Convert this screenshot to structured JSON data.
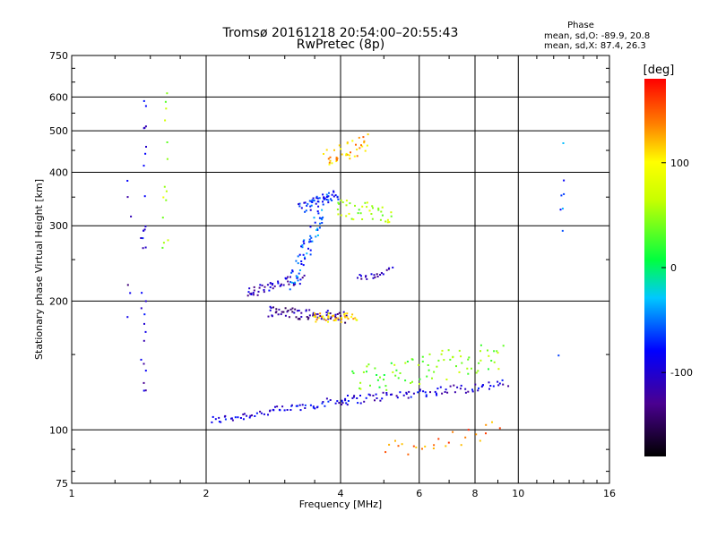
{
  "chart_data": {
    "type": "scatter",
    "title": "Tromsø 20161218 20:54:00–20:55:43",
    "subtitle": "RwPretec (8p)",
    "phase_info": {
      "title": "Phase",
      "line_o": "mean, sd,O: -89.9, 20.8",
      "line_x": "mean, sd,X:  87.4, 26.3"
    },
    "xlabel": "Frequency [MHz]",
    "ylabel": "Stationary phase Virtual Height [km]",
    "x_scale": "log2",
    "y_scale": "log",
    "xlim": [
      1,
      16
    ],
    "ylim": [
      75,
      750
    ],
    "x_ticks": [
      1,
      2,
      4,
      6,
      8,
      10,
      16
    ],
    "x_tick_labels": [
      "1",
      "2",
      "4",
      "6",
      "8",
      "10",
      "16"
    ],
    "y_ticks": [
      75,
      100,
      200,
      300,
      400,
      500,
      600,
      750
    ],
    "y_tick_labels": [
      "75",
      "100",
      "200",
      "300",
      "400",
      "500",
      "600",
      "750"
    ],
    "grid": true,
    "colorbar": {
      "label": "[deg]",
      "range": [
        -180,
        180
      ],
      "ticks": [
        100,
        0,
        -100
      ],
      "tick_labels": [
        "100",
        "0",
        "-100"
      ]
    },
    "traces": [
      {
        "x_start": 2.05,
        "x_end": 4.2,
        "y_start": 105,
        "y_end": 118,
        "n": 70,
        "spread": 0.022,
        "phase": -95
      },
      {
        "x_start": 4.0,
        "x_end": 9.4,
        "y_start": 117,
        "y_end": 128,
        "n": 80,
        "spread": 0.025,
        "phase": -100
      },
      {
        "x_start": 4.3,
        "x_end": 9.2,
        "y_start": 130,
        "y_end": 150,
        "n": 80,
        "spread": 0.08,
        "phase": 40
      },
      {
        "x_start": 2.75,
        "x_end": 4.1,
        "y_start": 190,
        "y_end": 183,
        "n": 70,
        "spread": 0.03,
        "phase": -120
      },
      {
        "x_start": 3.45,
        "x_end": 4.35,
        "y_start": 183,
        "y_end": 183,
        "n": 40,
        "spread": 0.025,
        "phase": 110
      },
      {
        "x_start": 2.45,
        "x_end": 3.3,
        "y_start": 208,
        "y_end": 226,
        "n": 50,
        "spread": 0.03,
        "phase": -105
      },
      {
        "x_start": 3.1,
        "x_end": 3.7,
        "y_start": 225,
        "y_end": 330,
        "n": 60,
        "spread": 0.06,
        "phase": -60
      },
      {
        "x_start": 3.25,
        "x_end": 3.95,
        "y_start": 330,
        "y_end": 355,
        "n": 50,
        "spread": 0.03,
        "phase": -75
      },
      {
        "x_start": 3.7,
        "x_end": 4.6,
        "y_start": 430,
        "y_end": 470,
        "n": 40,
        "spread": 0.05,
        "phase": 120
      },
      {
        "x_start": 3.9,
        "x_end": 5.2,
        "y_start": 330,
        "y_end": 320,
        "n": 40,
        "spread": 0.05,
        "phase": 60
      },
      {
        "x_start": 4.4,
        "x_end": 5.2,
        "y_start": 225,
        "y_end": 235,
        "n": 20,
        "spread": 0.02,
        "phase": -110
      },
      {
        "x_start": 1.45,
        "x_end": 1.45,
        "y_start": 120,
        "y_end": 650,
        "n": 30,
        "spread": 0.06,
        "phase": -100
      },
      {
        "x_start": 1.62,
        "x_end": 1.62,
        "y_start": 220,
        "y_end": 620,
        "n": 14,
        "spread": 0.05,
        "phase": 60
      },
      {
        "x_start": 1.35,
        "x_end": 1.35,
        "y_start": 170,
        "y_end": 440,
        "n": 6,
        "spread": 0.05,
        "phase": -110
      },
      {
        "x_start": 12.5,
        "x_end": 12.5,
        "y_start": 120,
        "y_end": 620,
        "n": 8,
        "spread": 0.1,
        "phase": -60
      },
      {
        "x_start": 5.0,
        "x_end": 9.0,
        "y_start": 90,
        "y_end": 100,
        "n": 25,
        "spread": 0.05,
        "phase": 140
      }
    ]
  }
}
